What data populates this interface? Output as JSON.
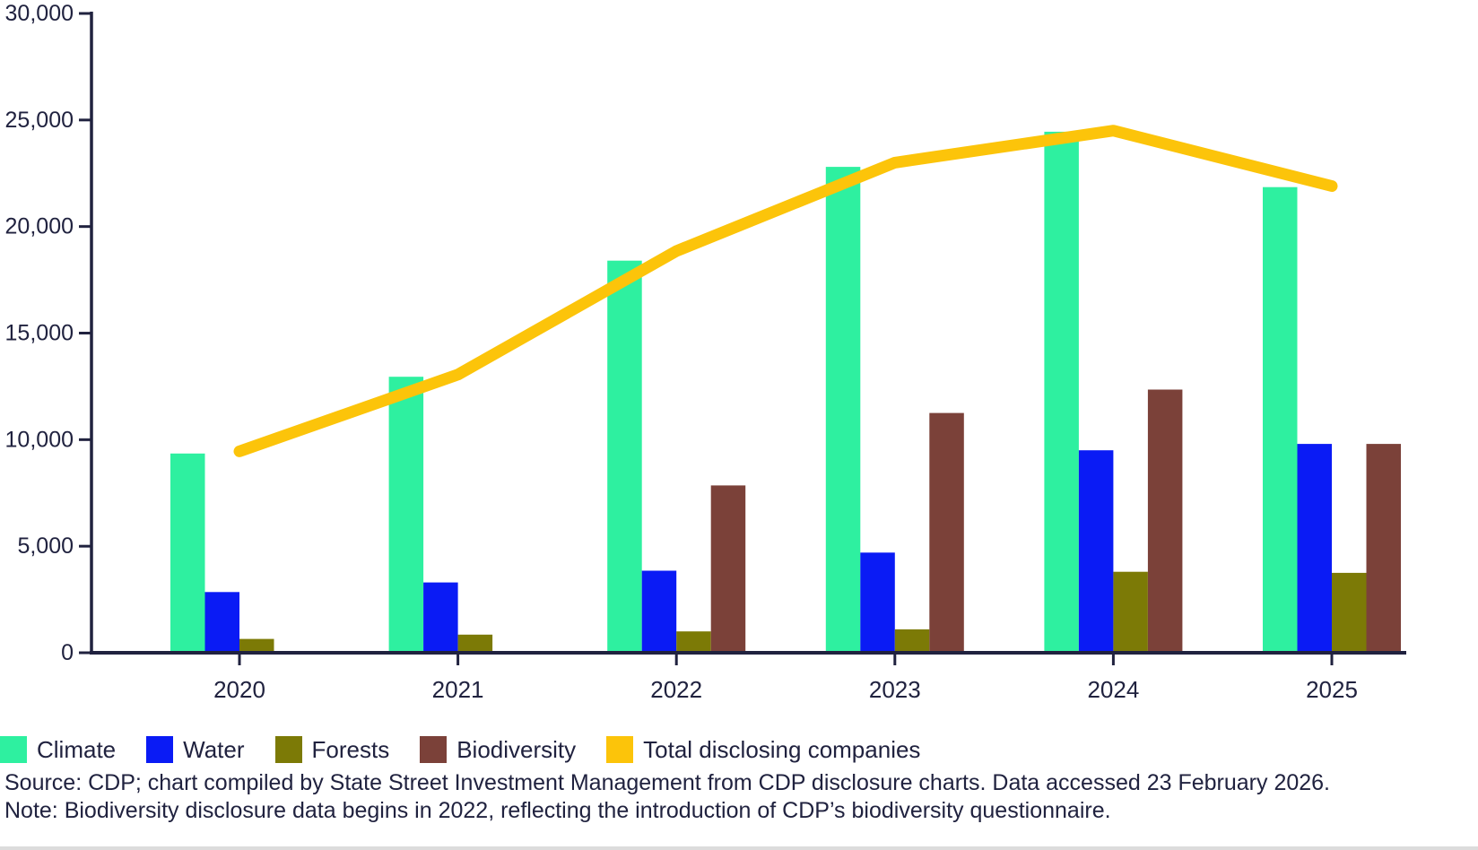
{
  "chart_data": {
    "type": "bar+line",
    "title": "",
    "xlabel": "",
    "ylabel": "",
    "categories": [
      "2020",
      "2021",
      "2022",
      "2023",
      "2024",
      "2025"
    ],
    "bar_series": [
      {
        "name": "Climate",
        "color": "#2EF0A0",
        "values": [
          9350,
          12950,
          18400,
          22800,
          24450,
          21850
        ]
      },
      {
        "name": "Water",
        "color": "#0A1BF5",
        "values": [
          2850,
          3300,
          3850,
          4700,
          9500,
          9800
        ]
      },
      {
        "name": "Forests",
        "color": "#7C7A06",
        "values": [
          650,
          850,
          1000,
          1100,
          3800,
          3750
        ]
      },
      {
        "name": "Biodiversity",
        "color": "#7B4139",
        "values": [
          null,
          null,
          7850,
          11250,
          12350,
          9800
        ]
      }
    ],
    "line_series": {
      "name": "Total disclosing companies",
      "color": "#FCC40A",
      "values": [
        9450,
        13050,
        18850,
        23000,
        24500,
        21900
      ]
    },
    "ylim": [
      0,
      30000
    ],
    "y_ticks": [
      {
        "value": 0,
        "label": "0"
      },
      {
        "value": 5000,
        "label": "5,000"
      },
      {
        "value": 10000,
        "label": "10,000"
      },
      {
        "value": 15000,
        "label": "15,000"
      },
      {
        "value": 20000,
        "label": "20,000"
      },
      {
        "value": 25000,
        "label": "25,000"
      },
      {
        "value": 30000,
        "label": "30,000"
      }
    ],
    "grid": false,
    "legend_position": "bottom",
    "axis_color": "#20223F",
    "tick_label_color": "#20223F"
  },
  "legend": {
    "items": [
      {
        "label": "Climate",
        "color": "#2EF0A0"
      },
      {
        "label": "Water",
        "color": "#0A1BF5"
      },
      {
        "label": "Forests",
        "color": "#7C7A06"
      },
      {
        "label": "Biodiversity",
        "color": "#7B4139"
      },
      {
        "label": "Total disclosing companies",
        "color": "#FCC40A"
      }
    ]
  },
  "footnotes": {
    "source": "Source: CDP; chart compiled by State Street Investment Management from CDP disclosure charts. Data accessed 23 February 2026.",
    "note": "Note: Biodiversity disclosure data begins in 2022, reflecting the introduction of CDP’s biodiversity questionnaire."
  }
}
